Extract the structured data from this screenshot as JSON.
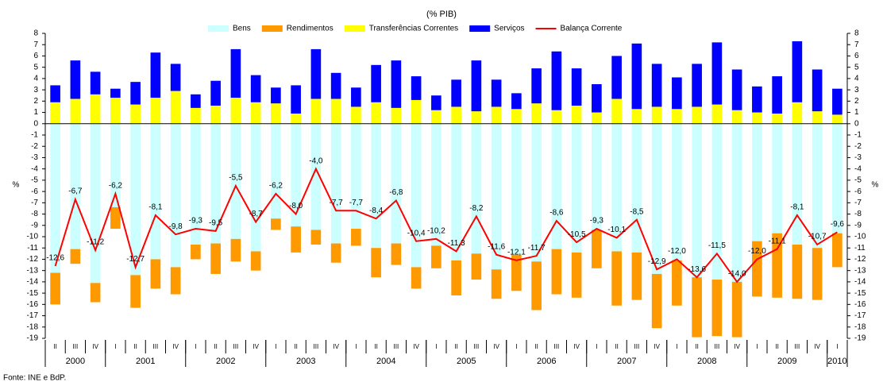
{
  "chart_data": {
    "type": "bar",
    "subtitle": "(% PIB)",
    "y_label": "%",
    "source": "Fonte: INE e BdP.",
    "categories": [
      "II",
      "III",
      "IV",
      "I",
      "II",
      "III",
      "IV",
      "I",
      "II",
      "III",
      "IV",
      "I",
      "II",
      "III",
      "IV",
      "I",
      "II",
      "III",
      "IV",
      "I",
      "II",
      "III",
      "IV",
      "I",
      "II",
      "III",
      "IV",
      "I",
      "II",
      "III",
      "IV",
      "I",
      "II",
      "III",
      "IV",
      "I",
      "II",
      "III",
      "IV",
      "I"
    ],
    "years": [
      "2000",
      "2001",
      "2002",
      "2003",
      "2004",
      "2005",
      "2006",
      "2007",
      "2008",
      "2009",
      "2010"
    ],
    "ylim": [
      -19,
      8
    ],
    "yticks": [
      -19,
      -18,
      -17,
      -16,
      -15,
      -14,
      -13,
      -12,
      -11,
      -10,
      -9,
      -8,
      -7,
      -6,
      -5,
      -4,
      -3,
      -2,
      -1,
      0,
      1,
      2,
      3,
      4,
      5,
      6,
      7,
      8
    ],
    "series": [
      {
        "name": "Bens",
        "type": "bar",
        "color": "#ccffff",
        "values": [
          -13.2,
          -11.1,
          -14.1,
          -7.4,
          -13.4,
          -12.0,
          -12.7,
          -10.7,
          -10.6,
          -10.2,
          -11.3,
          -8.4,
          -9.1,
          -9.4,
          -10.6,
          -9.3,
          -11.0,
          -10.6,
          -12.7,
          -10.8,
          -12.1,
          -11.5,
          -12.9,
          -11.6,
          -12.2,
          -11.1,
          -11.4,
          -9.4,
          -11.3,
          -11.4,
          -13.3,
          -12.1,
          -13.6,
          -13.8,
          -14.0,
          -10.4,
          -9.7,
          -10.7,
          -11.0,
          -9.7
        ]
      },
      {
        "name": "Rendimentos",
        "type": "bar",
        "color": "#ff9900",
        "values": [
          -2.8,
          -1.3,
          -1.7,
          -1.9,
          -2.9,
          -2.6,
          -2.4,
          -1.3,
          -2.7,
          -2.0,
          -1.7,
          -1.0,
          -2.3,
          -1.3,
          -1.7,
          -1.5,
          -2.6,
          -1.9,
          -1.9,
          -2.0,
          -3.1,
          -2.3,
          -2.6,
          -3.2,
          -4.3,
          -4.0,
          -4.0,
          -3.4,
          -4.8,
          -4.2,
          -4.8,
          -4.0,
          -5.3,
          -5.0,
          -4.9,
          -4.9,
          -5.7,
          -4.8,
          -4.6,
          -3.0
        ]
      },
      {
        "name": "Transferências Correntes",
        "type": "bar",
        "color": "#ffff00",
        "values": [
          1.9,
          2.2,
          2.6,
          2.3,
          1.7,
          2.3,
          2.9,
          1.4,
          1.6,
          2.3,
          1.9,
          1.8,
          0.9,
          2.2,
          2.2,
          1.5,
          1.9,
          1.4,
          2.1,
          1.2,
          1.5,
          1.1,
          1.5,
          1.3,
          1.8,
          1.2,
          1.6,
          1.0,
          2.2,
          1.3,
          1.5,
          1.3,
          1.5,
          1.7,
          1.2,
          1.0,
          0.9,
          1.9,
          1.1,
          0.8
        ]
      },
      {
        "name": "Serviços",
        "type": "bar",
        "color": "#0000ff",
        "values": [
          1.5,
          3.4,
          2.0,
          0.8,
          2.0,
          4.0,
          2.4,
          1.2,
          2.2,
          4.3,
          2.4,
          1.4,
          2.5,
          4.4,
          2.3,
          1.7,
          3.3,
          4.2,
          2.1,
          1.3,
          2.4,
          4.5,
          2.4,
          1.4,
          3.1,
          5.2,
          3.3,
          2.5,
          3.8,
          5.8,
          3.8,
          2.8,
          3.8,
          5.5,
          3.6,
          2.3,
          3.3,
          5.4,
          3.7,
          2.3
        ]
      },
      {
        "name": "Balança Corrente",
        "type": "line",
        "color": "#ff0000",
        "values": [
          -12.6,
          -6.7,
          -11.2,
          -6.2,
          -12.7,
          -8.1,
          -9.8,
          -9.3,
          -9.5,
          -5.5,
          -8.7,
          -6.2,
          -8.0,
          -4.0,
          -7.7,
          -7.7,
          -8.4,
          -6.8,
          -10.4,
          -10.2,
          -11.3,
          -8.2,
          -11.6,
          -12.1,
          -11.7,
          -8.6,
          -10.5,
          -9.3,
          -10.1,
          -8.5,
          -12.9,
          -12.0,
          -13.6,
          -11.5,
          -14.0,
          -12.0,
          -11.1,
          -8.1,
          -10.7,
          -9.6
        ],
        "value_labels": [
          "-12,6",
          "-6,7",
          "-11,2",
          "-6,2",
          "-12,7",
          "-8,1",
          "-9,8",
          "-9,3",
          "-9,5",
          "-5,5",
          "-8,7",
          "-6,2",
          "-8,0",
          "-4,0",
          "-7,7",
          "-7,7",
          "-8,4",
          "-6,8",
          "-10,4",
          "-10,2",
          "-11,3",
          "-8,2",
          "-11,6",
          "-12,1",
          "-11,7",
          "-8,6",
          "-10,5",
          "-9,3",
          "-10,1",
          "-8,5",
          "-12,9",
          "-12,0",
          "-13,6",
          "-11,5",
          "-14,0",
          "-12,0",
          "-11,1",
          "-8,1",
          "-10,7",
          "-9,6"
        ]
      }
    ]
  }
}
